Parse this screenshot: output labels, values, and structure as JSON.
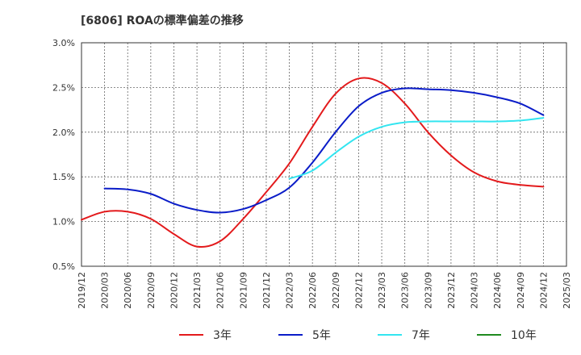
{
  "chart_data": {
    "type": "line",
    "title": "[6806]  ROAの標準偏差の推移",
    "x_tick_labels": [
      "2019/12",
      "2020/03",
      "2020/06",
      "2020/09",
      "2020/12",
      "2021/03",
      "2021/06",
      "2021/09",
      "2021/12",
      "2022/03",
      "2022/06",
      "2022/09",
      "2022/12",
      "2023/03",
      "2023/06",
      "2023/09",
      "2023/12",
      "2024/03",
      "2024/06",
      "2024/09",
      "2024/12",
      "2025/03"
    ],
    "y_tick_labels": [
      "0.5%",
      "1.0%",
      "1.5%",
      "2.0%",
      "2.5%",
      "3.0%"
    ],
    "ylim": [
      0.5,
      3.0
    ],
    "y_unit": "%",
    "grid": true,
    "legend_position": "bottom",
    "series": [
      {
        "name": "3年",
        "color": "#e31a1c",
        "x": [
          "2019/12",
          "2020/03",
          "2020/06",
          "2020/09",
          "2020/12",
          "2021/03",
          "2021/06",
          "2021/09",
          "2021/12",
          "2022/03",
          "2022/06",
          "2022/09",
          "2022/12",
          "2023/03",
          "2023/06",
          "2023/09",
          "2023/12",
          "2024/03",
          "2024/06",
          "2024/09",
          "2024/12"
        ],
        "values": [
          1.02,
          1.11,
          1.11,
          1.03,
          0.86,
          0.72,
          0.78,
          1.03,
          1.33,
          1.65,
          2.06,
          2.43,
          2.6,
          2.55,
          2.32,
          2.0,
          1.74,
          1.55,
          1.45,
          1.41,
          1.39
        ]
      },
      {
        "name": "5年",
        "color": "#0a1cc8",
        "x": [
          "2020/03",
          "2020/06",
          "2020/09",
          "2020/12",
          "2021/03",
          "2021/06",
          "2021/09",
          "2021/12",
          "2022/03",
          "2022/06",
          "2022/09",
          "2022/12",
          "2023/03",
          "2023/06",
          "2023/09",
          "2023/12",
          "2024/03",
          "2024/06",
          "2024/09",
          "2024/12"
        ],
        "values": [
          1.37,
          1.36,
          1.31,
          1.2,
          1.13,
          1.1,
          1.14,
          1.24,
          1.38,
          1.66,
          2.0,
          2.29,
          2.44,
          2.49,
          2.48,
          2.47,
          2.44,
          2.39,
          2.32,
          2.19
        ]
      },
      {
        "name": "7年",
        "color": "#33e5f0",
        "x": [
          "2022/03",
          "2022/06",
          "2022/09",
          "2022/12",
          "2023/03",
          "2023/06",
          "2023/09",
          "2023/12",
          "2024/03",
          "2024/06",
          "2024/09",
          "2024/12"
        ],
        "values": [
          1.48,
          1.57,
          1.77,
          1.95,
          2.06,
          2.11,
          2.12,
          2.12,
          2.12,
          2.12,
          2.13,
          2.16
        ]
      },
      {
        "name": "10年",
        "color": "#1f8a1f",
        "x": [],
        "values": []
      }
    ]
  }
}
